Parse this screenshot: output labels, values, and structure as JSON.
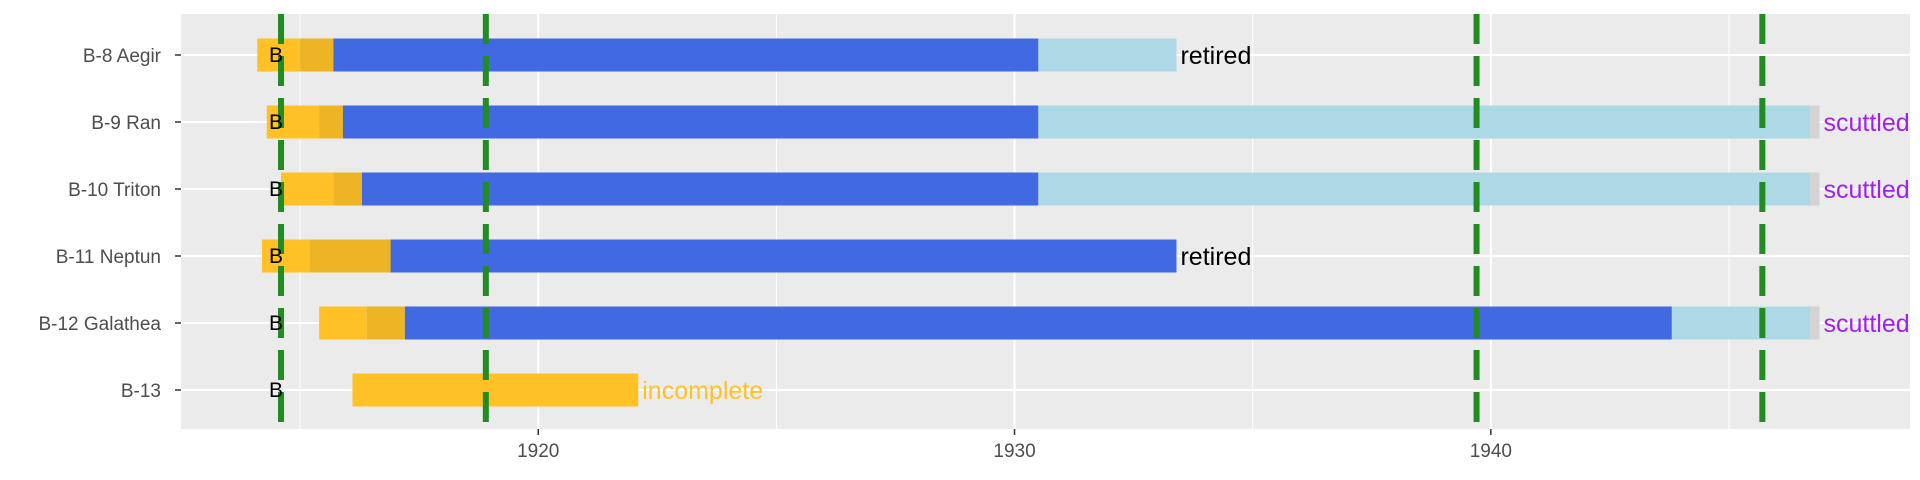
{
  "chart_data": {
    "type": "timeline",
    "title": "",
    "xlabel": "",
    "ylabel": "",
    "xlim": [
      1912.5,
      1948.8
    ],
    "x_ticks": [
      1920,
      1930,
      1940
    ],
    "x_minor_ticks": [
      1915,
      1925,
      1935,
      1945
    ],
    "grid": true,
    "colors": {
      "panel": "#ebebeb",
      "grid": "#ffffff",
      "phase_a": "#FFC125",
      "phase_b": "#EDB526",
      "service": "#4169E1",
      "reserve": "#ADD8E6",
      "end": "#d3d3d3",
      "event": "#228B22",
      "label_retired": "#000000",
      "label_scuttled": "#A020F0",
      "label_incomplete": "#FFC125"
    },
    "event_lines": [
      1914.6,
      1918.9,
      1939.7,
      1945.7
    ],
    "rows": [
      {
        "name": "B-8 Aegir",
        "marker": "B",
        "marker_x": 1914.6,
        "segments": [
          {
            "phase": "phase_a",
            "start": 1914.1,
            "end": 1915.0
          },
          {
            "phase": "phase_b",
            "start": 1915.0,
            "end": 1915.7
          },
          {
            "phase": "service",
            "start": 1915.7,
            "end": 1930.5
          },
          {
            "phase": "reserve",
            "start": 1930.5,
            "end": 1933.4
          }
        ],
        "fate": "retired",
        "fate_x": 1933.4,
        "fate_color": "label_retired"
      },
      {
        "name": "B-9 Ran",
        "marker": "B",
        "marker_x": 1914.6,
        "segments": [
          {
            "phase": "phase_a",
            "start": 1914.3,
            "end": 1915.4
          },
          {
            "phase": "phase_b",
            "start": 1915.4,
            "end": 1915.9
          },
          {
            "phase": "service",
            "start": 1915.9,
            "end": 1930.5
          },
          {
            "phase": "reserve",
            "start": 1930.5,
            "end": 1946.7
          },
          {
            "phase": "end",
            "start": 1946.7,
            "end": 1946.9
          }
        ],
        "fate": "scuttled",
        "fate_x": 1946.9,
        "fate_color": "label_scuttled"
      },
      {
        "name": "B-10 Triton",
        "marker": "B",
        "marker_x": 1914.6,
        "segments": [
          {
            "phase": "phase_a",
            "start": 1914.6,
            "end": 1915.7
          },
          {
            "phase": "phase_b",
            "start": 1915.7,
            "end": 1916.3
          },
          {
            "phase": "service",
            "start": 1916.3,
            "end": 1930.5
          },
          {
            "phase": "reserve",
            "start": 1930.5,
            "end": 1946.7
          },
          {
            "phase": "end",
            "start": 1946.7,
            "end": 1946.9
          }
        ],
        "fate": "scuttled",
        "fate_x": 1946.9,
        "fate_color": "label_scuttled"
      },
      {
        "name": "B-11 Neptun",
        "marker": "B",
        "marker_x": 1914.6,
        "segments": [
          {
            "phase": "phase_a",
            "start": 1914.2,
            "end": 1915.2
          },
          {
            "phase": "phase_b",
            "start": 1915.2,
            "end": 1916.9
          },
          {
            "phase": "service",
            "start": 1916.9,
            "end": 1933.4
          }
        ],
        "fate": "retired",
        "fate_x": 1933.4,
        "fate_color": "label_retired"
      },
      {
        "name": "B-12 Galathea",
        "marker": "B",
        "marker_x": 1914.6,
        "segments": [
          {
            "phase": "phase_a",
            "start": 1915.4,
            "end": 1916.4
          },
          {
            "phase": "phase_b",
            "start": 1916.4,
            "end": 1917.2
          },
          {
            "phase": "service",
            "start": 1917.2,
            "end": 1943.8
          },
          {
            "phase": "reserve",
            "start": 1943.8,
            "end": 1946.7
          },
          {
            "phase": "end",
            "start": 1946.7,
            "end": 1946.9
          }
        ],
        "fate": "scuttled",
        "fate_x": 1946.9,
        "fate_color": "label_scuttled"
      },
      {
        "name": "B-13",
        "marker": "B",
        "marker_x": 1914.6,
        "segments": [
          {
            "phase": "phase_a",
            "start": 1916.1,
            "end": 1922.1
          }
        ],
        "fate": "incomplete",
        "fate_x": 1922.1,
        "fate_color": "label_incomplete"
      }
    ]
  }
}
